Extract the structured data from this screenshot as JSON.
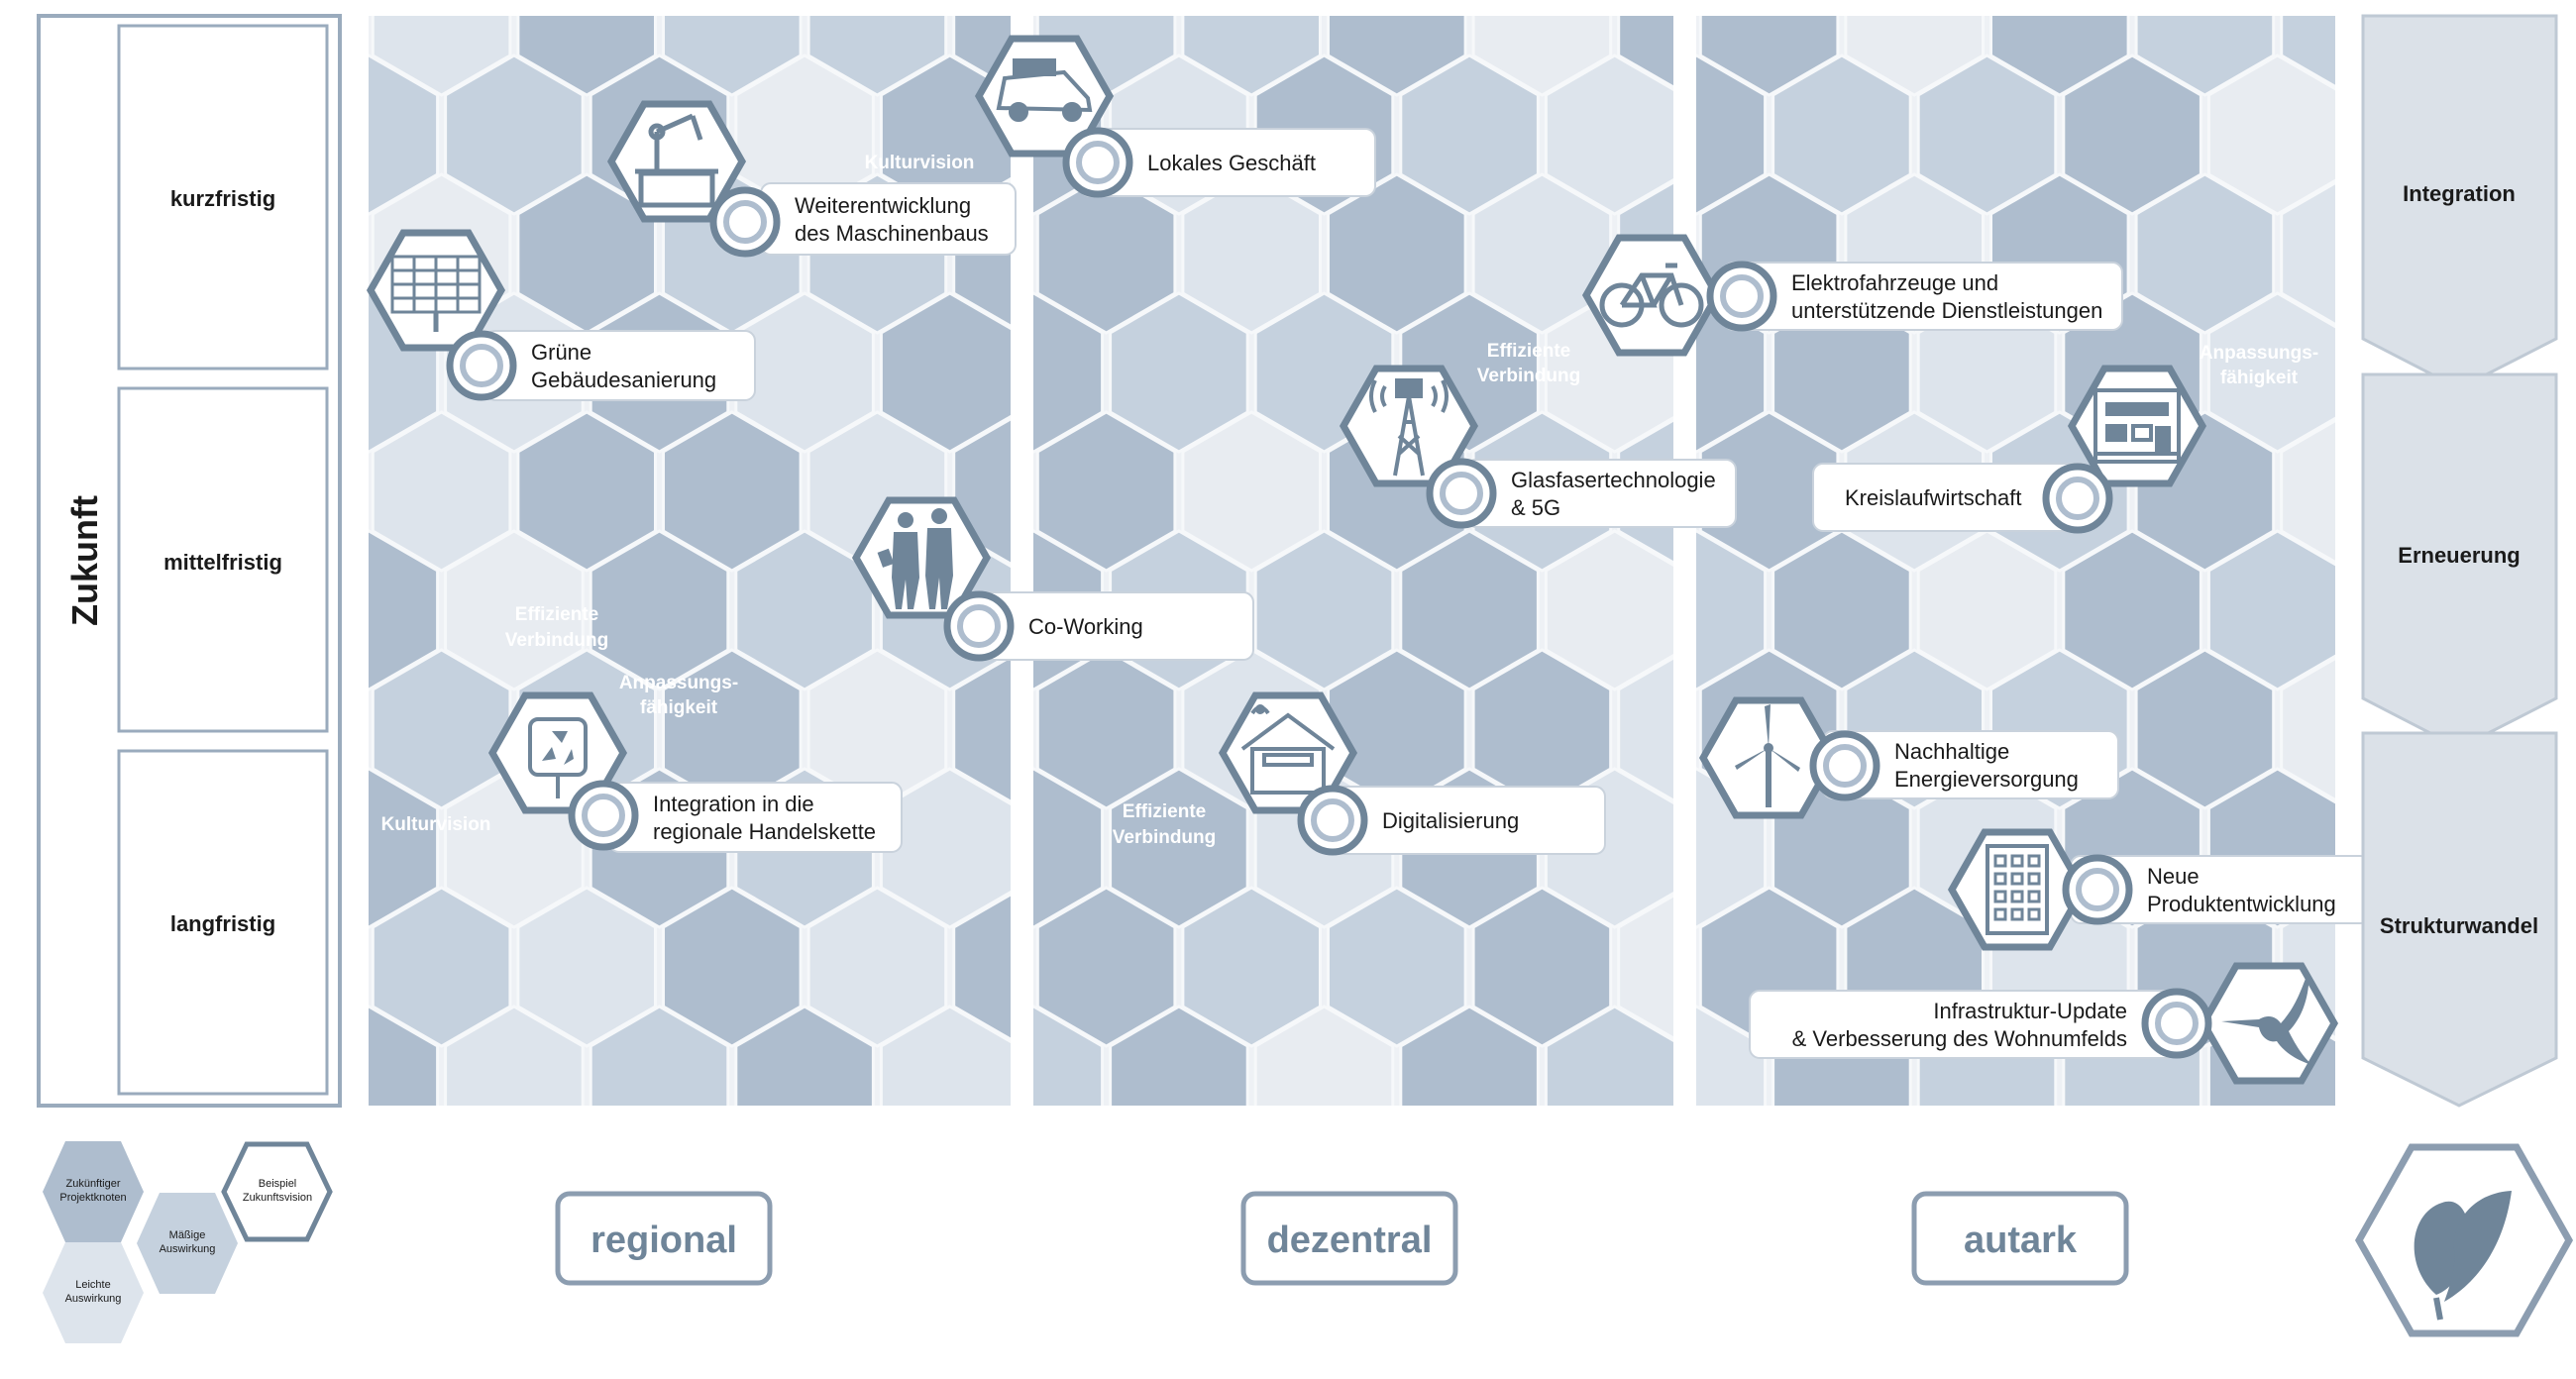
{
  "zukunft": {
    "title": "Zukunft",
    "rows": [
      {
        "label": "kurzfristig"
      },
      {
        "label": "mittelfristig"
      },
      {
        "label": "langfristig"
      }
    ]
  },
  "phases": [
    {
      "label": "Integration"
    },
    {
      "label": "Erneuerung"
    },
    {
      "label": "Strukturwandel"
    }
  ],
  "columns": [
    {
      "label": "regional"
    },
    {
      "label": "dezentral"
    },
    {
      "label": "autark"
    }
  ],
  "legend": {
    "future_node": "Zukünftiger Projektknoten",
    "moderate": "Mäßige Auswirkung",
    "example": "Beispiel Zukunftsvision",
    "light": "Leichte Auswirkung"
  },
  "tags": {
    "kulturvision": "Kulturvision",
    "effiziente": "Effiziente Verbindung",
    "anpassung": "Anpassungs- fähigkeit"
  },
  "projects": [
    {
      "lines": [
        "Weiterentwicklung",
        "des Maschinenbaus"
      ],
      "icon": "robot-arm-icon"
    },
    {
      "lines": [
        "Lokales Geschäft"
      ],
      "icon": "truck-icon"
    },
    {
      "lines": [
        "Grüne",
        "Gebäudesanierung"
      ],
      "icon": "solar-panel-icon"
    },
    {
      "lines": [
        "Co-Working"
      ],
      "icon": "people-icon"
    },
    {
      "lines": [
        "Integration in die",
        "regionale Handelskette"
      ],
      "icon": "recycle-icon"
    },
    {
      "lines": [
        "Elektrofahrzeuge und",
        "unterstützende Dienstleistungen"
      ],
      "icon": "bicycle-icon"
    },
    {
      "lines": [
        "Glasfasertechnologie",
        "& 5G"
      ],
      "icon": "antenna-tower-icon"
    },
    {
      "lines": [
        "Digitalisierung"
      ],
      "icon": "smart-house-icon"
    },
    {
      "lines": [
        "Kreislaufwirtschaft"
      ],
      "icon": "circuit-board-icon"
    },
    {
      "lines": [
        "Nachhaltige",
        "Energieversorgung"
      ],
      "icon": "wind-turbine-icon"
    },
    {
      "lines": [
        "Neue",
        "Produktentwicklung"
      ],
      "icon": "office-building-icon"
    },
    {
      "lines": [
        "Infrastruktur-Update",
        "& Verbesserung des Wohnumfelds"
      ],
      "icon": "hummingbird-icon"
    }
  ],
  "colors": {
    "frame": "#9aabbd",
    "panel": "#eef1f5",
    "light_hex": "#dde4ec",
    "mid_hex": "#c5d1de",
    "dark_hex": "#aebdce",
    "accent": "#6f8599",
    "tag_text": "#ffffff",
    "text": "#1a1a1a"
  }
}
